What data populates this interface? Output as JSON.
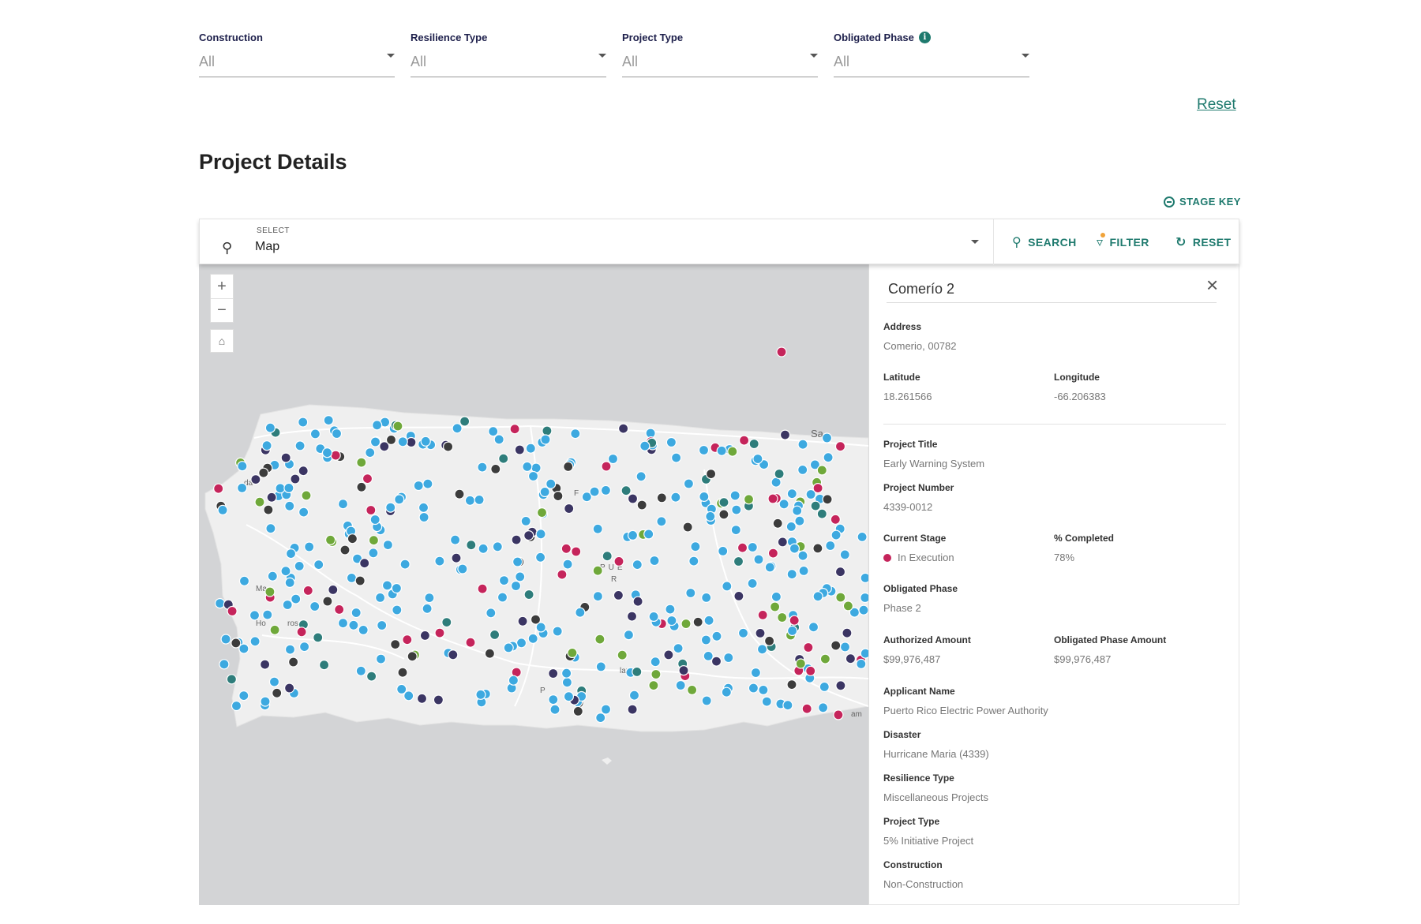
{
  "filters": [
    {
      "label": "Construction",
      "value": "All",
      "info": false
    },
    {
      "label": "Resilience Type",
      "value": "All",
      "info": false
    },
    {
      "label": "Project Type",
      "value": "All",
      "info": false
    },
    {
      "label": "Obligated Phase",
      "value": "All",
      "info": true
    }
  ],
  "reset_link": "Reset",
  "page_title": "Project Details",
  "stage_key": "STAGE KEY",
  "toolbar": {
    "select_small_label": "SELECT",
    "select_value": "Map",
    "search_label": "SEARCH",
    "filter_label": "FILTER",
    "reset_label": "RESET"
  },
  "map": {
    "place_labels": [
      "da",
      "bo",
      "Sa",
      "F",
      "bo",
      "PUE",
      "R",
      "Ma",
      "Ho",
      "ros",
      "laz",
      "P",
      "am"
    ],
    "colors": {
      "blue": "#3da9e0",
      "crimson": "#c5245b",
      "navy": "#3b3563",
      "green": "#6fa83a",
      "teal": "#2e7d7b",
      "dark": "#3c3c3c"
    }
  },
  "panel": {
    "title": "Comerío 2",
    "address_label": "Address",
    "address": "Comerio, 00782",
    "latitude_label": "Latitude",
    "latitude": "18.261566",
    "longitude_label": "Longitude",
    "longitude": "-66.206383",
    "project_title_label": "Project Title",
    "project_title": "Early Warning System",
    "project_number_label": "Project Number",
    "project_number": "4339-0012",
    "current_stage_label": "Current Stage",
    "current_stage": "In Execution",
    "current_stage_color": "#c5245b",
    "completed_label": "% Completed",
    "completed": "78%",
    "obligated_phase_label": "Obligated Phase",
    "obligated_phase": "Phase 2",
    "authorized_amount_label": "Authorized Amount",
    "authorized_amount": "$99,976,487",
    "obligated_phase_amount_label": "Obligated Phase Amount",
    "obligated_phase_amount": "$99,976,487",
    "applicant_name_label": "Applicant Name",
    "applicant_name": "Puerto Rico Electric Power Authority",
    "disaster_label": "Disaster",
    "disaster": "Hurricane Maria (4339)",
    "resilience_type_label": "Resilience Type",
    "resilience_type": "Miscellaneous Projects",
    "project_type_label": "Project Type",
    "project_type": "5% Initiative Project",
    "construction_label": "Construction",
    "construction": "Non-Construction"
  }
}
